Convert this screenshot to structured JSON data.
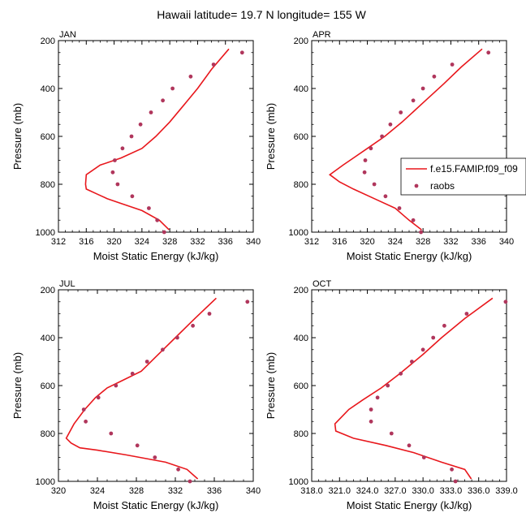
{
  "title": "Hawaii  latitude= 19.7 N longitude= 155 W",
  "ylabel": "Pressure (mb)",
  "xlabel": "Moist Static Energy (kJ/kg)",
  "legend": {
    "model": "f.e15.FAMIP.f09_f09",
    "obs": "raobs",
    "model_color": "#e8171c",
    "obs_color": "#b0365c"
  },
  "chart_data": [
    {
      "type": "line",
      "label": "JAN",
      "ylim": [
        1000,
        200
      ],
      "yticks": [
        "200",
        "400",
        "600",
        "800",
        "1000"
      ],
      "xlim": [
        312,
        340
      ],
      "xticks": [
        "312",
        "316",
        "320",
        "324",
        "328",
        "332",
        "336",
        "340"
      ],
      "model_series": {
        "energy": [
          327.9,
          326.5,
          324,
          321,
          319,
          317.5,
          316,
          315.9,
          316,
          318,
          321,
          324,
          326,
          328,
          330,
          332,
          334,
          336.5
        ],
        "pressure": [
          990,
          950,
          910,
          880,
          860,
          840,
          820,
          800,
          760,
          720,
          690,
          650,
          600,
          540,
          470,
          400,
          320,
          235
        ]
      },
      "obs_series": {
        "energy": [
          327.2,
          326.2,
          325,
          322.6,
          320.5,
          319.8,
          320.1,
          321.2,
          322.5,
          323.8,
          325.3,
          327,
          328.4,
          331,
          334.3,
          338.4
        ],
        "pressure": [
          1000,
          950,
          900,
          850,
          800,
          750,
          700,
          650,
          600,
          550,
          500,
          450,
          400,
          350,
          300,
          250
        ]
      }
    },
    {
      "type": "line",
      "label": "APR",
      "ylim": [
        1000,
        200
      ],
      "yticks": [
        "200",
        "400",
        "600",
        "800",
        "1000"
      ],
      "xlim": [
        312,
        340
      ],
      "xticks": [
        "312",
        "316",
        "320",
        "324",
        "328",
        "332",
        "336",
        "340"
      ],
      "model_series": {
        "energy": [
          327.8,
          326,
          324,
          321,
          318,
          316,
          314.6,
          316.5,
          318,
          320,
          322.5,
          325,
          328,
          331,
          333.5,
          336.5
        ],
        "pressure": [
          990,
          950,
          900,
          860,
          820,
          790,
          760,
          720,
          690,
          650,
          600,
          540,
          460,
          380,
          310,
          235
        ]
      },
      "obs_series": {
        "energy": [
          327.7,
          326.6,
          324.6,
          322.6,
          321,
          319.6,
          319.7,
          320.5,
          322.1,
          323.3,
          324.8,
          326.6,
          328,
          329.6,
          332.2,
          337.4
        ],
        "pressure": [
          1000,
          950,
          900,
          850,
          800,
          750,
          700,
          650,
          600,
          550,
          500,
          450,
          400,
          350,
          300,
          250
        ]
      }
    },
    {
      "type": "line",
      "label": "JUL",
      "ylim": [
        1000,
        200
      ],
      "yticks": [
        "200",
        "400",
        "600",
        "800",
        "1000"
      ],
      "xlim": [
        320,
        340
      ],
      "xticks": [
        "320",
        "324",
        "328",
        "332",
        "336",
        "340"
      ],
      "model_series": {
        "energy": [
          334.3,
          333.2,
          331,
          327,
          324,
          322.2,
          321.3,
          320.8,
          321.6,
          322.7,
          323.8,
          325,
          326.5,
          328.5,
          330,
          332,
          334,
          336.2
        ],
        "pressure": [
          990,
          950,
          920,
          890,
          870,
          860,
          840,
          820,
          760,
          700,
          650,
          610,
          580,
          540,
          480,
          400,
          320,
          235
        ]
      },
      "obs_series": {
        "energy": [
          333.5,
          332.3,
          329.9,
          328.1,
          325.4,
          322.8,
          322.6,
          324.1,
          325.9,
          327.6,
          329.1,
          330.7,
          332.2,
          333.8,
          335.5,
          339.4
        ],
        "pressure": [
          1000,
          950,
          900,
          850,
          800,
          750,
          700,
          650,
          600,
          550,
          500,
          450,
          400,
          350,
          300,
          250
        ]
      }
    },
    {
      "type": "line",
      "label": "OCT",
      "ylim": [
        1000,
        200
      ],
      "yticks": [
        "200",
        "400",
        "600",
        "800",
        "1000"
      ],
      "xlim": [
        318,
        339
      ],
      "xticks": [
        "318.0",
        "321.0",
        "324.0",
        "327.0",
        "330.0",
        "333.0",
        "336.0",
        "339.0"
      ],
      "model_series": {
        "energy": [
          335.2,
          334.5,
          332,
          329,
          326,
          322.5,
          320.6,
          320.5,
          322,
          323.5,
          325.5,
          327.5,
          330,
          332,
          334.5,
          337.5
        ],
        "pressure": [
          990,
          950,
          920,
          880,
          850,
          820,
          790,
          760,
          700,
          660,
          610,
          550,
          470,
          400,
          320,
          235
        ]
      },
      "obs_series": {
        "energy": [
          333.5,
          333.1,
          330.1,
          328.5,
          326.6,
          324.4,
          324.4,
          325.1,
          326.2,
          327.6,
          328.8,
          330,
          331.1,
          332.3,
          334.7,
          338.9
        ],
        "pressure": [
          1000,
          950,
          900,
          850,
          800,
          750,
          700,
          650,
          600,
          550,
          500,
          450,
          400,
          350,
          300,
          250
        ]
      }
    }
  ]
}
